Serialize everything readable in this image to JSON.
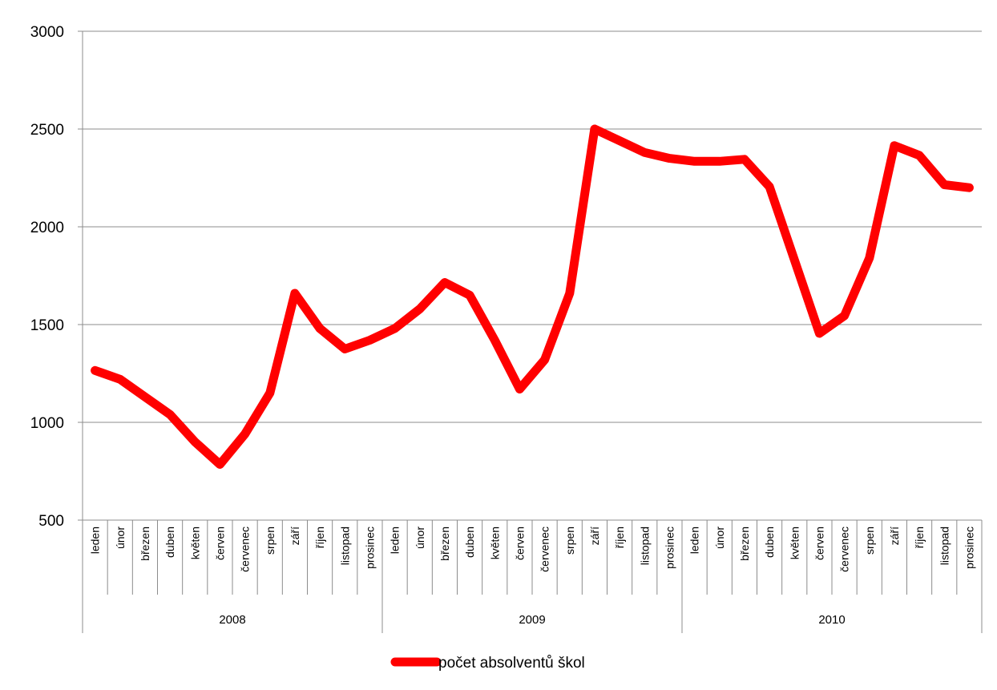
{
  "chart_data": {
    "type": "line",
    "title": "",
    "xlabel": "",
    "ylabel": "",
    "ylim": [
      500,
      3000
    ],
    "yticks": [
      500,
      1000,
      1500,
      2000,
      2500,
      3000
    ],
    "grid": true,
    "legend_position": "bottom",
    "years": [
      {
        "label": "2008",
        "months": [
          "leden",
          "únor",
          "březen",
          "duben",
          "květen",
          "červen",
          "červenec",
          "srpen",
          "září",
          "říjen",
          "listopad",
          "prosinec"
        ]
      },
      {
        "label": "2009",
        "months": [
          "leden",
          "únor",
          "březen",
          "duben",
          "květen",
          "červen",
          "červenec",
          "srpen",
          "září",
          "říjen",
          "listopad",
          "prosinec"
        ]
      },
      {
        "label": "2010",
        "months": [
          "leden",
          "únor",
          "březen",
          "duben",
          "květen",
          "červen",
          "červenec",
          "srpen",
          "září",
          "říjen",
          "listopad",
          "prosinec"
        ]
      }
    ],
    "series": [
      {
        "name": "počet absolventů škol",
        "color": "#ff0000",
        "values": [
          1265,
          1220,
          1130,
          1040,
          900,
          785,
          940,
          1150,
          1660,
          1480,
          1375,
          1420,
          1480,
          1580,
          1715,
          1650,
          1420,
          1170,
          1320,
          1660,
          2500,
          2440,
          2380,
          2350,
          2335,
          2335,
          2345,
          2205,
          1830,
          1455,
          1545,
          1840,
          2415,
          2365,
          2215,
          2200
        ]
      }
    ]
  }
}
